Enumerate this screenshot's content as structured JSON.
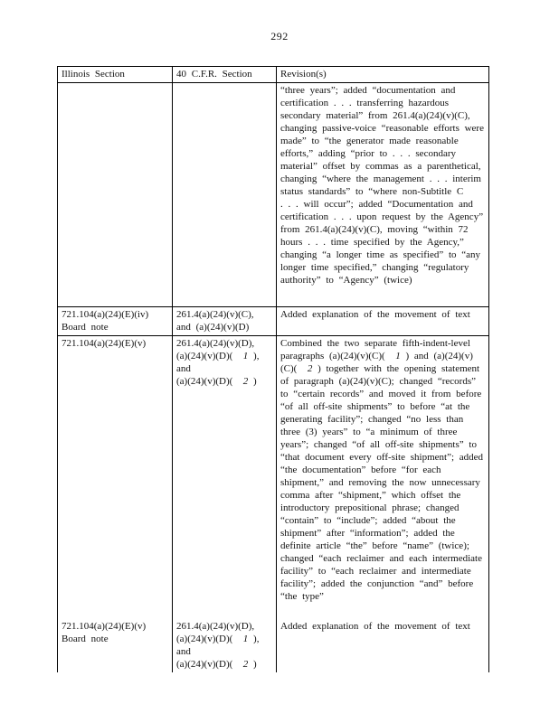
{
  "page": {
    "number": "292"
  },
  "table": {
    "headers": [
      "Illinois Section",
      "40 C.F.R. Section",
      "Revision(s)"
    ],
    "rows": [
      {
        "illinois": "",
        "cfr": "",
        "revision": "“three years”; added “documentation and certification . . . transferring hazardous secondary material” from 261.4(a)(24)(v)(C), changing passive-voice “reasonable efforts were made” to “the generator made reasonable efforts,” adding “prior to . . . secondary material” offset by commas as a parenthetical, changing “where the management . . . interim status standards” to “where non-Subtitle C . . . will occur”; added “Documentation and certification . . . upon request by the Agency” from 261.4(a)(24)(v)(C), moving “within 72 hours . . . time specified by the Agency,” changing “a longer time as specified” to “any longer time specified,” changing “regulatory authority” to “Agency” (twice)"
      },
      {
        "illinois": "721.104(a)(24)(E)(iv)\nBoard note",
        "cfr": "261.4(a)(24)(v)(C),\nand (a)(24)(v)(D)",
        "revision": "Added explanation of the movement of text"
      },
      {
        "illinois": "721.104(a)(24)(E)(v)",
        "cfr_runs": [
          {
            "t": "261.4(a)(24)(v)(D),\n(a)(24)(v)(D)(  "
          },
          {
            "t": "1",
            "i": true
          },
          {
            "t": " ), and\n(a)(24)(v)(D)(  "
          },
          {
            "t": "2",
            "i": true
          },
          {
            "t": " )"
          }
        ],
        "revision_runs": [
          {
            "t": "Combined the two separate fifth-indent-level paragraphs (a)(24)(v)(C)(  "
          },
          {
            "t": "1",
            "i": true
          },
          {
            "t": " ) and (a)(24)(v)(C)(  "
          },
          {
            "t": "2",
            "i": true
          },
          {
            "t": " ) together with the opening statement of paragraph (a)(24)(v)(C); changed “records” to “certain records” and moved it from before “of all off-site shipments” to before “at the generating facility”; changed “no less than three (3) years” to “a minimum of three years”; changed “of all off-site shipments” to “that document every off-site shipment”; added “the documentation” before “for each shipment,” and removing the now unnecessary comma after “shipment,” which offset the introductory prepositional phrase; changed “contain” to “include”; added “about the shipment” after “information”; added the definite article “the” before “name” (twice); changed “each reclaimer and each intermediate facility” to “each reclaimer and intermediate facility”; added the conjunction “and” before “the type”"
          }
        ]
      },
      {
        "illinois": "721.104(a)(24)(E)(v)\nBoard note",
        "cfr_runs": [
          {
            "t": "261.4(a)(24)(v)(D),\n(a)(24)(v)(D)(  "
          },
          {
            "t": "1",
            "i": true
          },
          {
            "t": " ), and\n(a)(24)(v)(D)(  "
          },
          {
            "t": "2",
            "i": true
          },
          {
            "t": " )"
          }
        ],
        "revision": "Added explanation of the movement of text"
      }
    ]
  }
}
